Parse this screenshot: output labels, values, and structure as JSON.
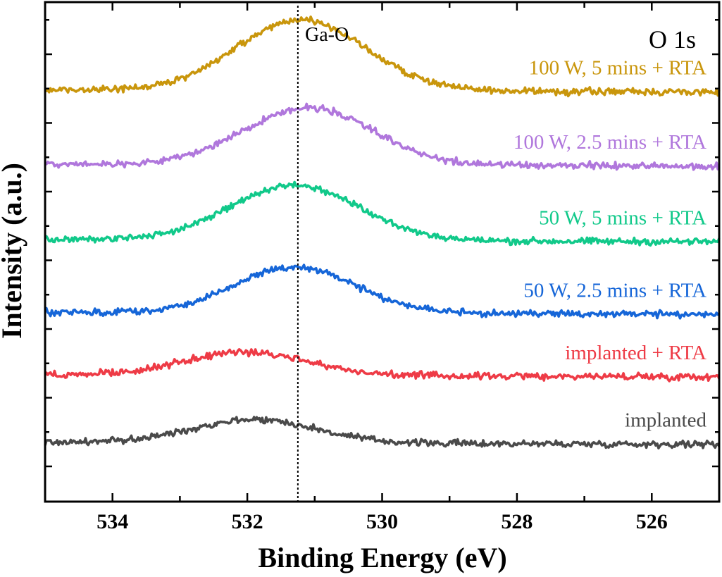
{
  "chart_data": {
    "type": "line",
    "xlabel": "Binding Energy (eV)",
    "ylabel": "Intensity (a.u.)",
    "xlim": [
      535,
      525
    ],
    "x_reversed": true,
    "x_ticks": [
      534,
      532,
      530,
      528,
      526
    ],
    "y_tick_labels_shown": false,
    "grid": false,
    "reference_line": {
      "x": 531.25,
      "label": "Ga-O",
      "style": "dotted"
    },
    "panel_label": "O 1s",
    "series": [
      {
        "name": "implanted",
        "color": "#4a4a4a",
        "offset": 0.0,
        "baseline": 0.3,
        "peak_center": 531.9,
        "peak_height": 0.35,
        "peak_width": 0.9
      },
      {
        "name": "implanted + RTA",
        "color": "#ee3b46",
        "offset": 1.0,
        "baseline": 0.3,
        "peak_center": 532.0,
        "peak_height": 0.35,
        "peak_width": 0.9
      },
      {
        "name": "50 W, 2.5 mins + RTA",
        "color": "#1666d8",
        "offset": 1.8,
        "baseline": 0.42,
        "peak_center": 531.3,
        "peak_height": 0.68,
        "peak_width": 0.9
      },
      {
        "name": "50 W, 5 mins + RTA",
        "color": "#11c98a",
        "offset": 3.0,
        "baseline": 0.3,
        "peak_center": 531.3,
        "peak_height": 0.82,
        "peak_width": 0.95
      },
      {
        "name": "100 W, 2.5 mins + RTA",
        "color": "#b077dc",
        "offset": 4.2,
        "baseline": 0.22,
        "peak_center": 531.1,
        "peak_height": 0.85,
        "peak_width": 0.95
      },
      {
        "name": "100 W, 5 mins + RTA",
        "color": "#c9960c",
        "offset": 5.3,
        "baseline": 0.22,
        "peak_center": 531.2,
        "peak_height": 1.05,
        "peak_width": 0.95
      }
    ],
    "legend_placement": "inline-right"
  }
}
